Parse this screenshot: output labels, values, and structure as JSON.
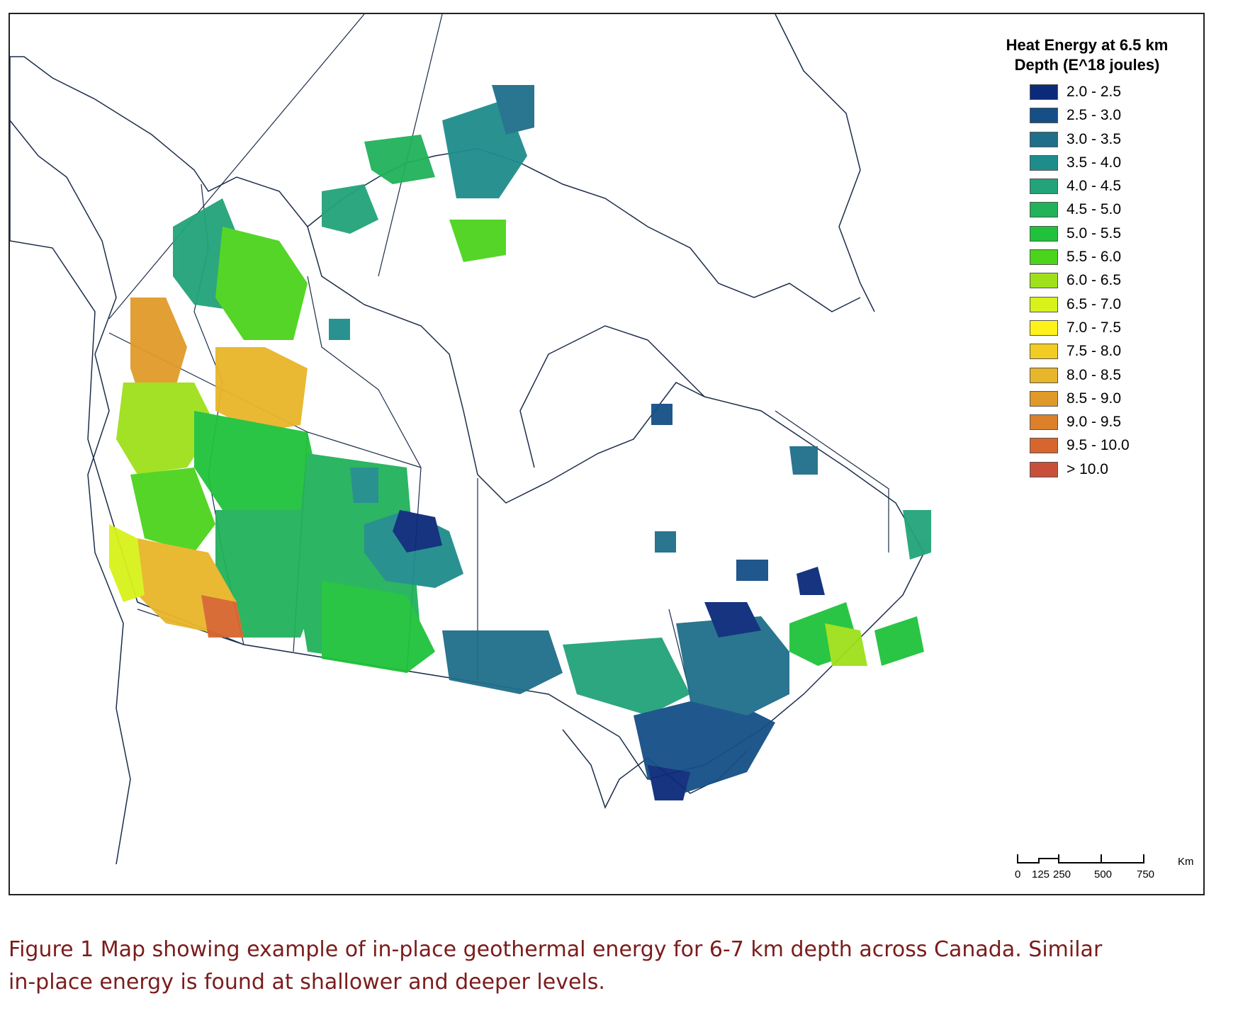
{
  "map": {
    "region": "Canada",
    "legend": {
      "title_line1": "Heat Energy at 6.5 km",
      "title_line2": "Depth (E^18 joules)",
      "classes": [
        {
          "label": "2.0 - 2.5",
          "color": "#0b2a7a"
        },
        {
          "label": "2.5 - 3.0",
          "color": "#154f86"
        },
        {
          "label": "3.0 - 3.5",
          "color": "#1f6e8a"
        },
        {
          "label": "3.5 - 4.0",
          "color": "#1f8c8c"
        },
        {
          "label": "4.0 - 4.5",
          "color": "#22a37a"
        },
        {
          "label": "4.5 - 5.0",
          "color": "#21b25a"
        },
        {
          "label": "5.0 - 5.5",
          "color": "#1fc23a"
        },
        {
          "label": "5.5 - 6.0",
          "color": "#4cd31c"
        },
        {
          "label": "6.0 - 6.5",
          "color": "#9ee01a"
        },
        {
          "label": "6.5 - 7.0",
          "color": "#d8f21a"
        },
        {
          "label": "7.0 - 7.5",
          "color": "#fff21a"
        },
        {
          "label": "7.5 - 8.0",
          "color": "#f2cc22"
        },
        {
          "label": "8.0 - 8.5",
          "color": "#e8b62a"
        },
        {
          "label": "8.5 - 9.0",
          "color": "#e09a2a"
        },
        {
          "label": "9.0 - 9.5",
          "color": "#dc802a"
        },
        {
          "label": "9.5 - 10.0",
          "color": "#d6662e"
        },
        {
          "label": "> 10.0",
          "color": "#c8503a"
        }
      ]
    },
    "scalebar": {
      "unit": "Km",
      "ticks": [
        "0",
        "125",
        "250",
        "500",
        "750"
      ]
    }
  },
  "caption": {
    "line1": "Figure 1 Map showing example of in-place geothermal energy for 6-7 km depth across Canada.  Similar",
    "line2": "in-place energy is found at shallower and deeper levels."
  }
}
